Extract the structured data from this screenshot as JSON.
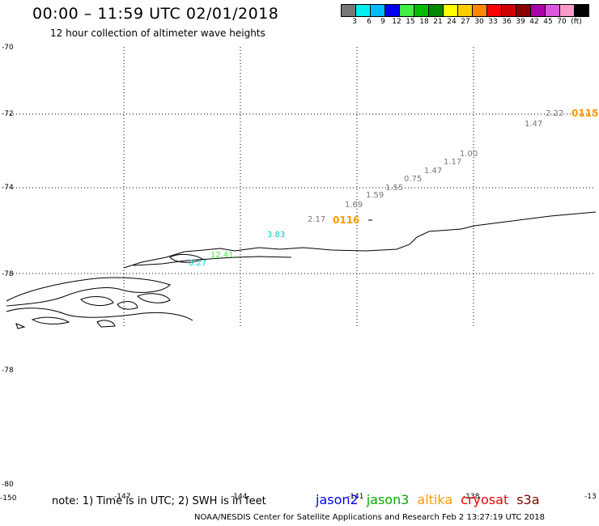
{
  "header": {
    "title": "00:00 – 11:59 UTC 02/01/2018",
    "subtitle": "12 hour collection of altimeter wave heights"
  },
  "scale": {
    "colors": [
      "#777777",
      "#00eeee",
      "#00bbff",
      "#0000ee",
      "#44ee44",
      "#00bb00",
      "#008800",
      "#ffff00",
      "#ffcc00",
      "#ff8800",
      "#ff0000",
      "#cc0000",
      "#880000",
      "#aa00aa",
      "#dd55dd",
      "#ff99cc",
      "#000000"
    ],
    "labels": [
      "3",
      "6",
      "9",
      "12",
      "15",
      "18",
      "21",
      "24",
      "27",
      "30",
      "33",
      "36",
      "39",
      "42",
      "45",
      "70",
      "(ft)"
    ]
  },
  "axes": {
    "lat_labels_upper": [
      "-70",
      "-72",
      "-74",
      "-78"
    ],
    "lat_labels_lower": [
      "-78",
      "-80"
    ],
    "lon_labels": [
      "-150",
      "-147",
      "-144",
      "-141",
      "-138",
      "-13"
    ]
  },
  "wave_heights": [
    {
      "value": "2.22",
      "color": "#777777"
    },
    {
      "value": "1.47",
      "color": "#777777"
    },
    {
      "value": "1.00",
      "color": "#777777"
    },
    {
      "value": "1.17",
      "color": "#777777"
    },
    {
      "value": "1.47",
      "color": "#777777"
    },
    {
      "value": "0.75",
      "color": "#777777"
    },
    {
      "value": "1.55",
      "color": "#777777"
    },
    {
      "value": "1.59",
      "color": "#777777"
    },
    {
      "value": "1.69",
      "color": "#777777"
    },
    {
      "value": "2.17",
      "color": "#777777"
    },
    {
      "value": "3.83",
      "color": "#00cccc"
    },
    {
      "value": "12.41",
      "color": "#44ee44"
    },
    {
      "value": "0.27",
      "color": "#00cccc"
    }
  ],
  "pass_labels": [
    {
      "text": "0115",
      "color": "#ff9900"
    },
    {
      "text": "0116",
      "color": "#ff9900"
    }
  ],
  "footer": {
    "note": "note: 1) Time is in UTC; 2) SWH is in feet",
    "satellites": [
      {
        "name": "jason2",
        "color": "#0000ee"
      },
      {
        "name": "jason3",
        "color": "#00aa00"
      },
      {
        "name": "altika",
        "color": "#ff9900"
      },
      {
        "name": "cryosat",
        "color": "#ee0000"
      },
      {
        "name": "s3a",
        "color": "#880000"
      }
    ],
    "credit": "NOAA/NESDIS Center for Satellite Applications and Research    Feb  2 13:27:19 UTC 2018"
  }
}
